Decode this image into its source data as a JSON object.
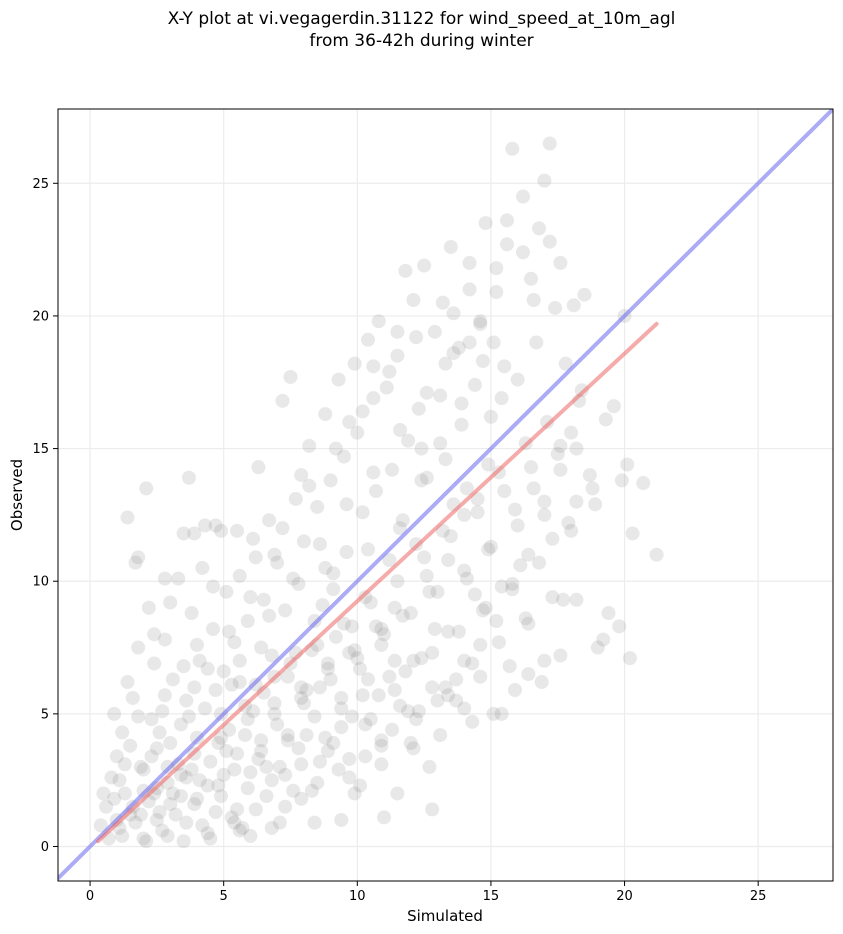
{
  "chart_data": {
    "type": "scatter",
    "title_line1": "X-Y plot at vi.vegagerdin.31122 for wind_speed_at_10m_agl",
    "title_line2": "from 36-42h during winter",
    "xlabel": "Simulated",
    "ylabel": "Observed",
    "xlim": [
      -1.2,
      27.8
    ],
    "ylim": [
      -1.3,
      27.8
    ],
    "xticks": [
      0,
      5,
      10,
      15,
      20,
      25
    ],
    "yticks": [
      0,
      5,
      10,
      15,
      20,
      25
    ],
    "grid": true,
    "point_color": "#808080",
    "point_opacity": 0.18,
    "identity_line": {
      "x": [
        -1.2,
        27.8
      ],
      "y": [
        -1.2,
        27.8
      ],
      "color": "#6666ee"
    },
    "regression_line": {
      "x": [
        0.3,
        21.2
      ],
      "y": [
        0.2,
        19.7
      ],
      "color": "#ee6666"
    },
    "points": [
      [
        0.4,
        0.8
      ],
      [
        0.5,
        2.0
      ],
      [
        0.6,
        1.5
      ],
      [
        0.8,
        2.6
      ],
      [
        0.9,
        5.0
      ],
      [
        1.0,
        3.4
      ],
      [
        1.1,
        0.7
      ],
      [
        1.2,
        4.3
      ],
      [
        1.3,
        2.0
      ],
      [
        1.4,
        6.2
      ],
      [
        1.4,
        12.4
      ],
      [
        1.5,
        1.2
      ],
      [
        1.6,
        5.6
      ],
      [
        1.7,
        10.7
      ],
      [
        1.8,
        10.9
      ],
      [
        1.8,
        7.5
      ],
      [
        1.9,
        3.0
      ],
      [
        2.0,
        0.3
      ],
      [
        2.1,
        13.5
      ],
      [
        2.2,
        9.0
      ],
      [
        2.3,
        4.8
      ],
      [
        2.4,
        6.9
      ],
      [
        2.5,
        2.2
      ],
      [
        2.6,
        1.3
      ],
      [
        2.7,
        5.1
      ],
      [
        2.8,
        7.8
      ],
      [
        2.9,
        0.4
      ],
      [
        3.0,
        3.9
      ],
      [
        3.1,
        6.3
      ],
      [
        3.3,
        10.1
      ],
      [
        3.4,
        2.7
      ],
      [
        3.5,
        11.8
      ],
      [
        3.6,
        5.5
      ],
      [
        3.7,
        13.9
      ],
      [
        3.8,
        8.8
      ],
      [
        3.9,
        1.6
      ],
      [
        4.0,
        4.1
      ],
      [
        4.1,
        7.0
      ],
      [
        4.2,
        10.5
      ],
      [
        4.3,
        12.1
      ],
      [
        4.4,
        0.5
      ],
      [
        4.5,
        3.2
      ],
      [
        4.6,
        8.2
      ],
      [
        4.7,
        5.9
      ],
      [
        4.8,
        2.3
      ],
      [
        4.9,
        11.9
      ],
      [
        5.0,
        6.6
      ],
      [
        5.1,
        9.6
      ],
      [
        5.2,
        4.4
      ],
      [
        5.3,
        1.1
      ],
      [
        5.4,
        7.7
      ],
      [
        5.5,
        3.5
      ],
      [
        5.6,
        10.2
      ],
      [
        5.7,
        0.7
      ],
      [
        5.8,
        5.3
      ],
      [
        5.9,
        8.5
      ],
      [
        6.0,
        2.8
      ],
      [
        6.1,
        11.6
      ],
      [
        6.2,
        6.1
      ],
      [
        6.3,
        14.3
      ],
      [
        6.4,
        4.0
      ],
      [
        6.5,
        9.3
      ],
      [
        6.6,
        1.9
      ],
      [
        6.7,
        12.3
      ],
      [
        6.8,
        7.2
      ],
      [
        6.9,
        5.0
      ],
      [
        7.0,
        10.7
      ],
      [
        7.1,
        3.0
      ],
      [
        7.2,
        16.8
      ],
      [
        7.3,
        8.9
      ],
      [
        7.4,
        6.4
      ],
      [
        7.5,
        17.7
      ],
      [
        7.6,
        2.1
      ],
      [
        7.7,
        13.1
      ],
      [
        7.8,
        9.9
      ],
      [
        7.9,
        5.6
      ],
      [
        8.0,
        11.5
      ],
      [
        8.1,
        4.2
      ],
      [
        8.2,
        15.1
      ],
      [
        8.3,
        7.4
      ],
      [
        8.4,
        0.9
      ],
      [
        8.5,
        12.8
      ],
      [
        8.6,
        6.0
      ],
      [
        8.7,
        9.1
      ],
      [
        8.8,
        16.3
      ],
      [
        8.9,
        3.6
      ],
      [
        9.0,
        13.8
      ],
      [
        9.1,
        10.3
      ],
      [
        9.2,
        7.9
      ],
      [
        9.3,
        17.6
      ],
      [
        9.4,
        5.2
      ],
      [
        9.5,
        14.7
      ],
      [
        9.6,
        11.1
      ],
      [
        9.7,
        2.6
      ],
      [
        9.8,
        8.3
      ],
      [
        9.9,
        18.2
      ],
      [
        10.0,
        15.6
      ],
      [
        10.1,
        6.7
      ],
      [
        10.2,
        12.6
      ],
      [
        10.3,
        9.4
      ],
      [
        10.4,
        19.1
      ],
      [
        10.5,
        4.8
      ],
      [
        10.6,
        16.9
      ],
      [
        10.7,
        13.4
      ],
      [
        10.8,
        19.8
      ],
      [
        10.9,
        7.6
      ],
      [
        11.0,
        1.1
      ],
      [
        11.1,
        17.3
      ],
      [
        11.2,
        10.8
      ],
      [
        11.3,
        14.2
      ],
      [
        11.4,
        5.9
      ],
      [
        11.5,
        18.5
      ],
      [
        11.6,
        12.0
      ],
      [
        11.7,
        8.7
      ],
      [
        11.8,
        21.7
      ],
      [
        11.9,
        15.3
      ],
      [
        12.0,
        3.9
      ],
      [
        12.1,
        20.6
      ],
      [
        12.2,
        11.4
      ],
      [
        12.3,
        16.5
      ],
      [
        12.4,
        7.1
      ],
      [
        12.5,
        21.9
      ],
      [
        12.6,
        13.9
      ],
      [
        12.7,
        9.6
      ],
      [
        12.8,
        1.4
      ],
      [
        12.9,
        19.4
      ],
      [
        13.0,
        5.5
      ],
      [
        13.1,
        17.0
      ],
      [
        13.2,
        11.9
      ],
      [
        13.3,
        14.6
      ],
      [
        13.4,
        8.1
      ],
      [
        13.5,
        22.6
      ],
      [
        13.6,
        20.1
      ],
      [
        13.7,
        6.3
      ],
      [
        13.8,
        18.8
      ],
      [
        13.9,
        15.9
      ],
      [
        14.0,
        12.5
      ],
      [
        14.1,
        10.1
      ],
      [
        14.2,
        21.0
      ],
      [
        14.3,
        4.7
      ],
      [
        14.4,
        17.4
      ],
      [
        14.5,
        13.1
      ],
      [
        14.6,
        19.8
      ],
      [
        14.7,
        8.9
      ],
      [
        14.8,
        23.5
      ],
      [
        14.9,
        11.2
      ],
      [
        15.0,
        16.2
      ],
      [
        15.1,
        5.0
      ],
      [
        15.2,
        20.9
      ],
      [
        15.3,
        14.1
      ],
      [
        15.4,
        9.8
      ],
      [
        15.5,
        18.1
      ],
      [
        15.6,
        22.7
      ],
      [
        15.7,
        6.8
      ],
      [
        15.8,
        26.3
      ],
      [
        15.9,
        12.7
      ],
      [
        16.0,
        17.6
      ],
      [
        16.1,
        10.6
      ],
      [
        16.2,
        24.5
      ],
      [
        16.3,
        15.2
      ],
      [
        16.4,
        8.4
      ],
      [
        16.5,
        21.4
      ],
      [
        16.6,
        13.5
      ],
      [
        16.7,
        19.0
      ],
      [
        16.8,
        23.3
      ],
      [
        16.9,
        6.2
      ],
      [
        17.0,
        25.1
      ],
      [
        17.1,
        16.0
      ],
      [
        17.2,
        26.5
      ],
      [
        17.3,
        11.6
      ],
      [
        17.4,
        20.3
      ],
      [
        17.5,
        14.8
      ],
      [
        17.6,
        22.0
      ],
      [
        17.7,
        9.3
      ],
      [
        17.8,
        18.2
      ],
      [
        17.9,
        12.2
      ],
      [
        18.0,
        15.6
      ],
      [
        18.1,
        20.4
      ],
      [
        18.2,
        13.0
      ],
      [
        18.3,
        16.8
      ],
      [
        18.5,
        20.8
      ],
      [
        18.7,
        14.0
      ],
      [
        18.9,
        12.9
      ],
      [
        19.0,
        7.5
      ],
      [
        19.2,
        7.8
      ],
      [
        19.3,
        16.1
      ],
      [
        19.4,
        8.8
      ],
      [
        19.6,
        16.6
      ],
      [
        19.8,
        8.3
      ],
      [
        19.9,
        13.8
      ],
      [
        20.0,
        20.0
      ],
      [
        20.1,
        14.4
      ],
      [
        20.2,
        7.1
      ],
      [
        20.3,
        11.8
      ],
      [
        20.7,
        13.7
      ],
      [
        21.2,
        11.0
      ],
      [
        1.0,
        1.0
      ],
      [
        1.3,
        3.1
      ],
      [
        1.7,
        0.9
      ],
      [
        2.0,
        2.9
      ],
      [
        2.2,
        1.7
      ],
      [
        2.5,
        3.7
      ],
      [
        2.7,
        0.6
      ],
      [
        2.9,
        2.4
      ],
      [
        3.2,
        1.2
      ],
      [
        3.4,
        4.6
      ],
      [
        3.6,
        0.9
      ],
      [
        3.8,
        2.9
      ],
      [
        4.0,
        1.8
      ],
      [
        4.3,
        5.2
      ],
      [
        4.5,
        0.3
      ],
      [
        4.8,
        3.9
      ],
      [
        5.0,
        2.7
      ],
      [
        5.3,
        6.1
      ],
      [
        5.5,
        1.4
      ],
      [
        5.8,
        4.2
      ],
      [
        6.0,
        0.4
      ],
      [
        6.3,
        3.3
      ],
      [
        6.5,
        5.8
      ],
      [
        6.8,
        2.5
      ],
      [
        7.0,
        4.6
      ],
      [
        7.3,
        1.5
      ],
      [
        7.5,
        6.9
      ],
      [
        7.8,
        3.7
      ],
      [
        8.0,
        5.4
      ],
      [
        8.3,
        2.1
      ],
      [
        8.5,
        7.6
      ],
      [
        8.8,
        4.1
      ],
      [
        9.0,
        6.3
      ],
      [
        9.3,
        2.9
      ],
      [
        9.5,
        8.4
      ],
      [
        9.8,
        4.9
      ],
      [
        10.0,
        7.1
      ],
      [
        10.3,
        3.4
      ],
      [
        10.5,
        9.2
      ],
      [
        10.8,
        5.7
      ],
      [
        11.0,
        8.0
      ],
      [
        11.3,
        4.4
      ],
      [
        11.5,
        10.0
      ],
      [
        11.8,
        6.6
      ],
      [
        12.0,
        8.8
      ],
      [
        12.3,
        5.1
      ],
      [
        12.5,
        10.9
      ],
      [
        12.8,
        7.3
      ],
      [
        13.0,
        9.6
      ],
      [
        13.3,
        6.0
      ],
      [
        13.5,
        11.7
      ],
      [
        13.8,
        8.1
      ],
      [
        14.0,
        10.4
      ],
      [
        14.3,
        6.9
      ],
      [
        14.5,
        12.6
      ],
      [
        14.8,
        9.0
      ],
      [
        15.0,
        11.3
      ],
      [
        15.3,
        7.7
      ],
      [
        15.5,
        13.4
      ],
      [
        15.8,
        9.9
      ],
      [
        16.0,
        12.1
      ],
      [
        16.3,
        8.6
      ],
      [
        16.5,
        14.3
      ],
      [
        16.8,
        10.7
      ],
      [
        17.0,
        13.0
      ],
      [
        17.3,
        9.4
      ],
      [
        17.6,
        15.1
      ],
      [
        18.0,
        11.9
      ],
      [
        18.4,
        17.2
      ],
      [
        18.8,
        13.5
      ],
      [
        2.4,
        8.0
      ],
      [
        3.0,
        9.2
      ],
      [
        3.5,
        6.8
      ],
      [
        4.0,
        7.6
      ],
      [
        4.6,
        9.8
      ],
      [
        5.2,
        8.1
      ],
      [
        5.6,
        6.2
      ],
      [
        6.2,
        10.9
      ],
      [
        6.7,
        8.7
      ],
      [
        7.2,
        12.0
      ],
      [
        7.6,
        10.1
      ],
      [
        8.2,
        13.6
      ],
      [
        8.6,
        11.4
      ],
      [
        9.2,
        15.0
      ],
      [
        9.6,
        12.9
      ],
      [
        10.2,
        16.4
      ],
      [
        10.6,
        14.1
      ],
      [
        11.2,
        17.9
      ],
      [
        11.6,
        15.7
      ],
      [
        12.2,
        19.2
      ],
      [
        12.6,
        17.1
      ],
      [
        13.2,
        20.5
      ],
      [
        13.6,
        18.6
      ],
      [
        14.2,
        22.0
      ],
      [
        14.6,
        19.7
      ],
      [
        15.2,
        21.8
      ],
      [
        15.6,
        23.6
      ],
      [
        16.2,
        22.4
      ],
      [
        16.6,
        20.6
      ],
      [
        17.2,
        22.8
      ],
      [
        9.4,
        1.0
      ],
      [
        10.1,
        2.3
      ],
      [
        10.9,
        3.1
      ],
      [
        11.5,
        2.0
      ],
      [
        12.1,
        3.7
      ],
      [
        12.7,
        3.0
      ],
      [
        13.1,
        4.2
      ],
      [
        13.7,
        5.5
      ],
      [
        14.0,
        5.2
      ],
      [
        14.6,
        6.4
      ],
      [
        15.4,
        5.0
      ],
      [
        15.9,
        5.9
      ],
      [
        16.4,
        6.5
      ],
      [
        17.0,
        7.0
      ],
      [
        17.6,
        7.2
      ],
      [
        18.2,
        9.3
      ],
      [
        2.8,
        10.1
      ],
      [
        3.9,
        11.8
      ],
      [
        4.7,
        12.1
      ],
      [
        5.5,
        11.9
      ],
      [
        0.7,
        0.3
      ],
      [
        0.9,
        1.8
      ],
      [
        1.1,
        2.5
      ],
      [
        1.5,
        3.8
      ],
      [
        1.8,
        4.9
      ],
      [
        2.1,
        0.2
      ],
      [
        2.3,
        3.4
      ],
      [
        2.6,
        4.3
      ],
      [
        2.8,
        5.7
      ],
      [
        3.1,
        2.0
      ],
      [
        3.3,
        3.1
      ],
      [
        3.5,
        0.2
      ],
      [
        3.7,
        4.9
      ],
      [
        3.9,
        6.0
      ],
      [
        4.1,
        2.5
      ],
      [
        4.4,
        6.7
      ],
      [
        4.7,
        1.3
      ],
      [
        4.9,
        5.0
      ],
      [
        5.1,
        3.6
      ],
      [
        5.4,
        0.9
      ],
      [
        5.6,
        7.0
      ],
      [
        5.9,
        2.2
      ],
      [
        6.1,
        5.1
      ],
      [
        6.4,
        7.5
      ],
      [
        6.6,
        3.0
      ],
      [
        6.9,
        6.4
      ],
      [
        7.1,
        0.9
      ],
      [
        7.4,
        4.0
      ],
      [
        7.7,
        7.3
      ],
      [
        7.9,
        1.8
      ],
      [
        8.1,
        5.9
      ],
      [
        8.4,
        8.5
      ],
      [
        8.6,
        3.2
      ],
      [
        8.9,
        6.9
      ],
      [
        9.1,
        9.7
      ],
      [
        9.4,
        4.5
      ],
      [
        9.7,
        7.3
      ],
      [
        9.9,
        2.0
      ],
      [
        10.2,
        5.7
      ],
      [
        10.4,
        11.2
      ],
      [
        10.7,
        8.3
      ],
      [
        10.9,
        3.8
      ],
      [
        11.2,
        6.4
      ],
      [
        11.4,
        9.0
      ],
      [
        11.7,
        12.3
      ],
      [
        11.9,
        5.1
      ],
      [
        12.1,
        7.0
      ],
      [
        12.4,
        13.8
      ],
      [
        12.6,
        10.2
      ],
      [
        12.9,
        8.2
      ],
      [
        13.1,
        15.2
      ],
      [
        13.4,
        10.8
      ],
      [
        13.6,
        12.9
      ],
      [
        13.9,
        16.7
      ],
      [
        14.1,
        13.5
      ],
      [
        14.4,
        9.5
      ],
      [
        14.7,
        18.3
      ],
      [
        14.9,
        14.4
      ],
      [
        15.1,
        19.0
      ],
      [
        15.4,
        16.9
      ],
      [
        6.0,
        9.4
      ],
      [
        6.9,
        11.0
      ],
      [
        7.9,
        14.0
      ],
      [
        8.8,
        10.5
      ],
      [
        9.7,
        16.0
      ],
      [
        10.6,
        18.1
      ],
      [
        11.5,
        19.4
      ],
      [
        12.4,
        15.0
      ],
      [
        13.3,
        18.2
      ],
      [
        14.2,
        19.0
      ],
      [
        1.9,
        1.2
      ],
      [
        2.4,
        2.0
      ],
      [
        2.9,
        3.0
      ],
      [
        3.4,
        1.9
      ],
      [
        3.9,
        3.5
      ],
      [
        4.4,
        2.3
      ],
      [
        4.9,
        4.1
      ],
      [
        5.4,
        2.9
      ],
      [
        5.9,
        4.8
      ],
      [
        6.4,
        3.6
      ],
      [
        6.9,
        5.4
      ],
      [
        7.4,
        4.2
      ],
      [
        7.9,
        6.0
      ],
      [
        8.4,
        4.9
      ],
      [
        8.9,
        6.7
      ],
      [
        9.4,
        5.6
      ],
      [
        9.9,
        7.4
      ],
      [
        10.4,
        6.3
      ],
      [
        10.9,
        8.2
      ],
      [
        11.4,
        7.0
      ],
      [
        1.2,
        0.4
      ],
      [
        1.6,
        1.5
      ],
      [
        2.0,
        2.1
      ],
      [
        2.5,
        1.0
      ],
      [
        3.0,
        1.6
      ],
      [
        3.6,
        2.6
      ],
      [
        4.2,
        0.8
      ],
      [
        4.9,
        1.9
      ],
      [
        5.6,
        0.6
      ],
      [
        6.2,
        1.4
      ],
      [
        6.8,
        0.7
      ],
      [
        7.3,
        2.7
      ],
      [
        7.9,
        3.1
      ],
      [
        8.5,
        2.4
      ],
      [
        9.1,
        3.9
      ],
      [
        9.7,
        3.3
      ],
      [
        10.3,
        4.6
      ],
      [
        10.9,
        4.0
      ],
      [
        11.6,
        5.3
      ],
      [
        12.2,
        4.8
      ],
      [
        12.8,
        6.0
      ],
      [
        13.4,
        5.7
      ],
      [
        14.0,
        7.0
      ],
      [
        14.6,
        7.6
      ],
      [
        15.2,
        8.5
      ],
      [
        15.8,
        9.7
      ],
      [
        16.4,
        11.0
      ],
      [
        17.0,
        12.5
      ],
      [
        17.6,
        14.2
      ],
      [
        18.2,
        15.0
      ]
    ]
  }
}
